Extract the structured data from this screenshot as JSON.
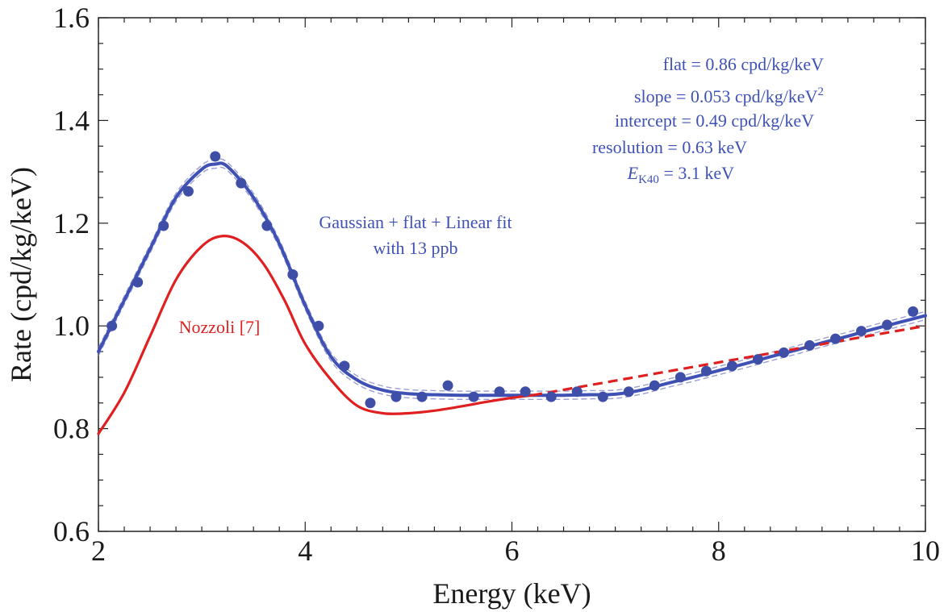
{
  "chart_data": {
    "type": "line",
    "title": "",
    "xlabel": "Energy (keV)",
    "ylabel": "Rate (cpd/kg/keV)",
    "xlim": [
      2,
      10
    ],
    "ylim": [
      0.6,
      1.6
    ],
    "xticks": [
      2,
      4,
      6,
      8,
      10
    ],
    "yticks": [
      0.6,
      0.8,
      1.0,
      1.2,
      1.4,
      1.6
    ],
    "xtick_labels": [
      "2",
      "4",
      "6",
      "8",
      "10"
    ],
    "ytick_labels": [
      "0.6",
      "0.8",
      "1.0",
      "1.2",
      "1.4",
      "1.6"
    ],
    "grid": false,
    "fit_params": {
      "flat": 0.86,
      "slope": 0.053,
      "intercept": 0.49,
      "resolution": 0.63,
      "E_K40": 3.1
    },
    "series": [
      {
        "type": "scatter",
        "color": "#3f4fa8",
        "x": [
          2.13,
          2.38,
          2.63,
          2.87,
          3.13,
          3.38,
          3.63,
          3.88,
          4.13,
          4.38,
          4.63,
          4.88,
          5.13,
          5.38,
          5.63,
          5.88,
          6.13,
          6.38,
          6.63,
          6.88,
          7.13,
          7.38,
          7.63,
          7.88,
          8.13,
          8.38,
          8.63,
          8.88,
          9.13,
          9.38,
          9.63,
          9.88
        ],
        "y": [
          1.0,
          1.085,
          1.195,
          1.262,
          1.33,
          1.278,
          1.195,
          1.1,
          1.0,
          0.922,
          0.85,
          0.862,
          0.862,
          0.884,
          0.862,
          0.872,
          0.872,
          0.862,
          0.872,
          0.862,
          0.872,
          0.884,
          0.9,
          0.912,
          0.922,
          0.935,
          0.948,
          0.962,
          0.975,
          0.99,
          1.002,
          1.028
        ]
      },
      {
        "name": "Gaussian + flat + Linear fit",
        "type": "line",
        "color": "#3f51b5",
        "x": [
          2.0,
          2.25,
          2.5,
          2.75,
          3.0,
          3.13,
          3.25,
          3.5,
          3.75,
          4.0,
          4.25,
          4.5,
          4.75,
          5.0,
          5.25,
          5.5,
          5.75,
          6.0,
          6.25,
          6.5,
          6.75,
          7.0,
          7.25,
          7.5,
          7.75,
          8.0,
          8.25,
          8.5,
          8.75,
          9.0,
          9.25,
          9.5,
          9.75,
          10.0
        ],
        "y": [
          0.95,
          1.05,
          1.15,
          1.25,
          1.305,
          1.315,
          1.31,
          1.25,
          1.16,
          1.04,
          0.94,
          0.895,
          0.875,
          0.868,
          0.866,
          0.865,
          0.865,
          0.865,
          0.865,
          0.865,
          0.866,
          0.867,
          0.875,
          0.888,
          0.9,
          0.913,
          0.926,
          0.94,
          0.953,
          0.967,
          0.98,
          0.994,
          1.007,
          1.02
        ]
      },
      {
        "name": "Nozzoli [7]",
        "type": "line",
        "color": "#e02020",
        "x": [
          2.0,
          2.25,
          2.5,
          2.75,
          3.0,
          3.2,
          3.4,
          3.6,
          3.8,
          4.0,
          4.25,
          4.5,
          4.75,
          5.0,
          5.25,
          5.5,
          5.75,
          6.0,
          6.2
        ],
        "y": [
          0.79,
          0.87,
          0.98,
          1.09,
          1.155,
          1.175,
          1.162,
          1.12,
          1.05,
          0.965,
          0.895,
          0.845,
          0.83,
          0.83,
          0.835,
          0.843,
          0.852,
          0.86,
          0.865
        ]
      },
      {
        "name": "Nozzoli [7] extrapolation",
        "type": "line",
        "dashed": true,
        "color": "#e02020",
        "x": [
          6.2,
          10.0
        ],
        "y": [
          0.865,
          1.0
        ]
      }
    ]
  },
  "annotations": {
    "fit_label_line1": "Gaussian + flat + Linear fit",
    "fit_label_line2": "with 13 ppb",
    "nozzoli_label": "Nozzoli [7]",
    "param_flat": "flat = 0.86 cpd/kg/keV",
    "param_slope": "slope = 0.053 cpd/kg/keV",
    "param_slope_sup": "2",
    "param_intercept": "intercept = 0.49 cpd/kg/keV",
    "param_resolution": "resolution = 0.63 keV",
    "param_ek40_var": "E",
    "param_ek40_sub": "K40",
    "param_ek40_rest": " = 3.1 keV"
  }
}
